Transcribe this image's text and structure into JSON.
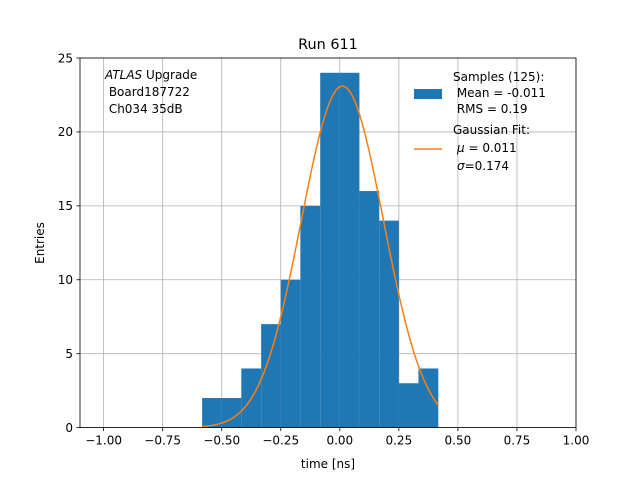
{
  "chart_data": {
    "type": "bar",
    "title": "Run 611",
    "xlabel": "time [ns]",
    "ylabel": "Entries",
    "xlim": [
      -1.1,
      1.0
    ],
    "ylim": [
      0,
      25
    ],
    "grid": true,
    "x_ticks": [
      -1.0,
      -0.75,
      -0.5,
      -0.25,
      0.0,
      0.25,
      0.5,
      0.75,
      1.0
    ],
    "x_tick_labels": [
      "−1.00",
      "−0.75",
      "−0.50",
      "−0.25",
      "0.00",
      "0.25",
      "0.50",
      "0.75",
      "1.00"
    ],
    "y_ticks": [
      0,
      5,
      10,
      15,
      20,
      25
    ],
    "y_tick_labels": [
      "0",
      "5",
      "10",
      "15",
      "20",
      "25"
    ],
    "histogram": {
      "bin_edges": [
        -0.583,
        -0.5,
        -0.417,
        -0.333,
        -0.25,
        -0.167,
        -0.083,
        0.0,
        0.083,
        0.167,
        0.25,
        0.333,
        0.417
      ],
      "counts": [
        2,
        2,
        4,
        7,
        10,
        15,
        24,
        24,
        16,
        14,
        3,
        4
      ],
      "color": "#1f77b4"
    },
    "fit_curve": {
      "type": "gaussian",
      "amplitude": 23.1,
      "mu": 0.011,
      "sigma": 0.174,
      "x_range": [
        -0.583,
        0.417
      ],
      "color": "#ff7f0e"
    },
    "annotation": {
      "line1_italic": "ATLAS",
      "line1_rest": " Upgrade",
      "line2": " Board187722",
      "line3": " Ch034 35dB"
    },
    "legend": {
      "position": "upper right",
      "samples_lines": [
        "Samples (125):",
        " Mean = -0.011",
        " RMS = 0.19"
      ],
      "fit_title": "Gaussian Fit:",
      "fit_mu_symbol": "μ",
      "fit_mu_value": " = 0.011",
      "fit_sigma_symbol": "σ",
      "fit_sigma_value": "=0.174"
    }
  }
}
